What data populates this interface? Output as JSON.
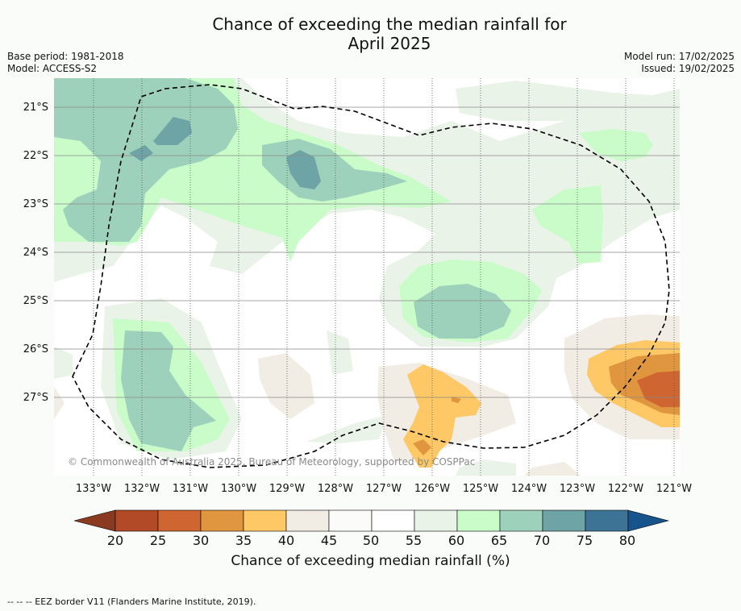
{
  "title_line1": "Chance of exceeding the median rainfall for",
  "title_line2": "April 2025",
  "base_period": "Base period: 1981-2018",
  "model": "Model: ACCESS-S2",
  "model_run": "Model run: 17/02/2025",
  "issued": "Issued: 19/02/2025",
  "copyright": "© Commonwealth of Australia 2025, Bureau of Meteorology, supported by COSPPac",
  "footnote": "--  --  -- EEZ border V11 (Flanders Marine Institute, 2019).",
  "map": {
    "lat_labels": [
      "21°S",
      "22°S",
      "23°S",
      "24°S",
      "25°S",
      "26°S",
      "27°S"
    ],
    "lon_labels": [
      "133°W",
      "132°W",
      "131°W",
      "130°W",
      "129°W",
      "128°W",
      "127°W",
      "126°W",
      "125°W",
      "124°W",
      "123°W",
      "122°W",
      "121°W"
    ],
    "grid": true,
    "eez_border": "dashed"
  },
  "colorbar": {
    "title": "Chance of exceeding median rainfall (%)",
    "ticks": [
      "20",
      "25",
      "30",
      "35",
      "40",
      "45",
      "50",
      "55",
      "60",
      "65",
      "70",
      "75",
      "80"
    ],
    "colors": [
      "#8b3a22",
      "#b24a27",
      "#cf6530",
      "#e0963f",
      "#fdc865",
      "#f1ece4",
      "#fbfbf9",
      "#ffffff",
      "#e9f3e8",
      "#c9fcc9",
      "#9dd1bb",
      "#6ea4a6",
      "#3d7496",
      "#17538d"
    ]
  }
}
